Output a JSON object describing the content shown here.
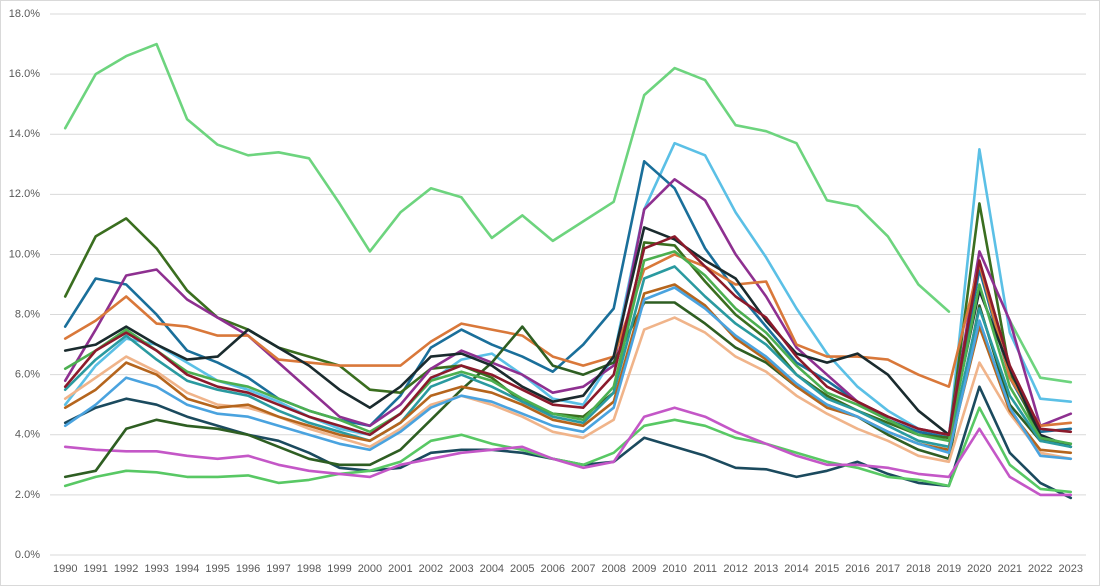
{
  "chart_data": {
    "type": "line",
    "categories": [
      "1990",
      "1991",
      "1992",
      "1993",
      "1994",
      "1995",
      "1996",
      "1997",
      "1998",
      "1999",
      "2000",
      "2001",
      "2002",
      "2003",
      "2004",
      "2005",
      "2006",
      "2007",
      "2008",
      "2009",
      "2010",
      "2011",
      "2012",
      "2013",
      "2014",
      "2015",
      "2016",
      "2017",
      "2018",
      "2019",
      "2020",
      "2021",
      "2022",
      "2023"
    ],
    "ylim": [
      0,
      18
    ],
    "yticks": [
      {
        "value": 0,
        "label": "0.0%"
      },
      {
        "value": 2,
        "label": "2.0%"
      },
      {
        "value": 4,
        "label": "4.0%"
      },
      {
        "value": 6,
        "label": "6.0%"
      },
      {
        "value": 8,
        "label": "8.0%"
      },
      {
        "value": 10,
        "label": "10.0%"
      },
      {
        "value": 12,
        "label": "12.0%"
      },
      {
        "value": 14,
        "label": "14.0%"
      },
      {
        "value": 16,
        "label": "16.0%"
      },
      {
        "value": 18,
        "label": "18.0%"
      }
    ],
    "grid": true,
    "series": [
      {
        "color": "#6dd47e",
        "values": [
          14.2,
          16.0,
          16.6,
          17.0,
          14.5,
          13.65,
          13.3,
          13.4,
          13.2,
          11.7,
          10.1,
          11.4,
          12.2,
          11.9,
          10.55,
          11.3,
          10.45,
          11.1,
          11.75,
          15.3,
          16.2,
          15.8,
          14.3,
          14.1,
          13.7,
          11.8,
          11.6,
          10.6,
          9.0,
          8.1,
          null,
          7.8,
          5.9,
          5.75
        ]
      },
      {
        "color": "#5bc0e6",
        "values": [
          5.0,
          6.3,
          7.2,
          7.0,
          6.4,
          5.8,
          5.5,
          5.1,
          4.6,
          4.2,
          4.0,
          4.7,
          5.8,
          6.5,
          6.7,
          6.0,
          5.2,
          5.0,
          6.6,
          11.5,
          13.7,
          13.3,
          11.4,
          9.9,
          8.2,
          6.7,
          5.6,
          4.8,
          4.2,
          3.9,
          13.5,
          7.4,
          5.2,
          5.1
        ]
      },
      {
        "color": "#1a6f9a",
        "values": [
          7.6,
          9.2,
          9.0,
          8.0,
          6.8,
          6.4,
          5.9,
          5.2,
          4.8,
          4.5,
          4.3,
          5.3,
          6.9,
          7.5,
          7.0,
          6.6,
          6.1,
          7.0,
          8.2,
          13.1,
          12.2,
          10.2,
          8.8,
          7.6,
          6.4,
          5.8,
          5.1,
          4.5,
          4.1,
          3.9,
          9.5,
          5.9,
          4.1,
          4.2
        ]
      },
      {
        "color": "#3a6e1f",
        "values": [
          8.6,
          10.6,
          11.2,
          10.2,
          8.8,
          7.9,
          7.5,
          6.9,
          6.6,
          6.3,
          5.5,
          5.4,
          6.2,
          6.3,
          5.9,
          5.1,
          4.7,
          4.6,
          5.4,
          10.4,
          10.3,
          9.1,
          8.0,
          7.2,
          6.0,
          5.3,
          4.8,
          4.4,
          4.0,
          3.9,
          11.7,
          6.1,
          3.9,
          3.6
        ]
      },
      {
        "color": "#8e3090",
        "values": [
          5.8,
          7.5,
          9.3,
          9.5,
          8.5,
          7.9,
          7.3,
          6.4,
          5.5,
          4.6,
          4.3,
          5.0,
          6.2,
          6.8,
          6.4,
          6.0,
          5.4,
          5.6,
          6.3,
          11.5,
          12.5,
          11.8,
          10.0,
          8.6,
          6.9,
          6.0,
          5.1,
          4.6,
          4.2,
          4.0,
          10.1,
          7.8,
          4.3,
          4.7
        ]
      },
      {
        "color": "#d9783a",
        "values": [
          7.2,
          7.8,
          8.6,
          7.7,
          7.6,
          7.3,
          7.3,
          6.5,
          6.4,
          6.3,
          6.3,
          6.3,
          7.1,
          7.7,
          7.5,
          7.3,
          6.6,
          6.3,
          6.6,
          9.5,
          10.0,
          9.6,
          9.0,
          9.1,
          7.0,
          6.6,
          6.6,
          6.5,
          6.0,
          5.6,
          9.7,
          5.9,
          4.3,
          4.4
        ]
      },
      {
        "color": "#1b4a5e",
        "values": [
          4.4,
          4.9,
          5.2,
          5.0,
          4.6,
          4.3,
          4.0,
          3.8,
          3.4,
          2.9,
          2.8,
          2.9,
          3.4,
          3.5,
          3.5,
          3.4,
          3.2,
          3.0,
          3.1,
          3.9,
          3.6,
          3.3,
          2.9,
          2.85,
          2.6,
          2.8,
          3.1,
          2.7,
          2.4,
          2.3,
          5.6,
          3.4,
          2.4,
          1.9
        ]
      },
      {
        "color": "#58c864",
        "values": [
          2.3,
          2.6,
          2.8,
          2.75,
          2.6,
          2.6,
          2.65,
          2.4,
          2.5,
          2.7,
          2.8,
          3.1,
          3.8,
          4.0,
          3.7,
          3.5,
          3.2,
          3.0,
          3.4,
          4.3,
          4.5,
          4.3,
          3.9,
          3.7,
          3.4,
          3.1,
          2.9,
          2.6,
          2.5,
          2.3,
          4.9,
          3.0,
          2.2,
          2.1
        ]
      },
      {
        "color": "#c457c7",
        "values": [
          3.6,
          3.5,
          3.45,
          3.45,
          3.3,
          3.2,
          3.3,
          3.0,
          2.8,
          2.7,
          2.6,
          3.0,
          3.2,
          3.4,
          3.5,
          3.6,
          3.2,
          2.9,
          3.1,
          4.6,
          4.9,
          4.6,
          4.1,
          3.7,
          3.3,
          3.0,
          3.0,
          2.9,
          2.7,
          2.6,
          4.2,
          2.6,
          2.0,
          2.0
        ]
      },
      {
        "color": "#2e5e22",
        "values": [
          2.6,
          2.8,
          4.2,
          4.5,
          4.3,
          4.2,
          4.0,
          3.6,
          3.2,
          3.0,
          3.0,
          3.5,
          4.5,
          5.5,
          6.4,
          7.6,
          6.3,
          6.0,
          6.4,
          8.4,
          8.4,
          7.7,
          6.9,
          6.4,
          5.6,
          5.0,
          4.6,
          4.0,
          3.5,
          3.2,
          8.3,
          5.0,
          3.8,
          3.7
        ]
      },
      {
        "color": "#1a2b2e",
        "values": [
          6.8,
          7.0,
          7.6,
          7.0,
          6.5,
          6.6,
          7.5,
          6.9,
          6.3,
          5.5,
          4.9,
          5.6,
          6.6,
          6.7,
          6.3,
          5.6,
          5.1,
          5.3,
          6.6,
          10.9,
          10.5,
          9.8,
          9.2,
          7.8,
          6.7,
          6.4,
          6.7,
          6.0,
          4.8,
          4.0,
          8.8,
          6.2,
          4.0,
          3.6
        ]
      },
      {
        "color": "#f0b48a",
        "values": [
          5.2,
          5.9,
          6.6,
          6.1,
          5.4,
          5.0,
          4.9,
          4.6,
          4.2,
          3.9,
          3.6,
          4.2,
          5.0,
          5.3,
          5.0,
          4.6,
          4.1,
          3.9,
          4.5,
          7.5,
          7.9,
          7.4,
          6.6,
          6.1,
          5.3,
          4.7,
          4.2,
          3.8,
          3.3,
          3.1,
          6.4,
          4.7,
          3.4,
          3.2
        ]
      },
      {
        "color": "#2a9aa0",
        "values": [
          5.5,
          6.5,
          7.3,
          6.5,
          5.8,
          5.5,
          5.3,
          4.8,
          4.4,
          4.1,
          3.8,
          4.4,
          5.6,
          6.0,
          5.6,
          5.1,
          4.6,
          4.4,
          5.4,
          9.2,
          9.6,
          8.6,
          7.7,
          7.0,
          6.0,
          5.2,
          4.8,
          4.3,
          3.8,
          3.6,
          8.2,
          5.3,
          3.8,
          3.6
        ]
      },
      {
        "color": "#b5651d",
        "values": [
          4.9,
          5.5,
          6.4,
          6.0,
          5.2,
          4.9,
          5.0,
          4.6,
          4.3,
          4.0,
          3.8,
          4.4,
          5.3,
          5.6,
          5.4,
          5.0,
          4.5,
          4.3,
          5.1,
          8.7,
          9.0,
          8.3,
          7.2,
          6.5,
          5.6,
          4.9,
          4.6,
          4.1,
          3.7,
          3.5,
          7.6,
          4.8,
          3.5,
          3.4
        ]
      },
      {
        "color": "#4caf50",
        "values": [
          6.2,
          6.8,
          7.5,
          6.8,
          6.1,
          5.8,
          5.6,
          5.2,
          4.8,
          4.5,
          4.1,
          4.7,
          5.8,
          6.1,
          5.8,
          5.2,
          4.7,
          4.5,
          5.6,
          9.8,
          10.1,
          9.3,
          8.2,
          7.4,
          6.3,
          5.4,
          5.0,
          4.5,
          4.0,
          3.8,
          9.0,
          5.6,
          3.9,
          3.7
        ]
      },
      {
        "color": "#4aa3df",
        "values": [
          4.3,
          5.0,
          5.9,
          5.6,
          5.0,
          4.7,
          4.6,
          4.3,
          4.0,
          3.7,
          3.5,
          4.1,
          4.9,
          5.3,
          5.1,
          4.7,
          4.3,
          4.1,
          4.9,
          8.5,
          8.9,
          8.2,
          7.3,
          6.6,
          5.7,
          5.0,
          4.6,
          4.1,
          3.7,
          3.4,
          7.8,
          4.9,
          3.3,
          3.2
        ]
      },
      {
        "color": "#8b1a2b",
        "values": [
          5.6,
          6.8,
          7.4,
          6.8,
          6.0,
          5.6,
          5.4,
          5.0,
          4.6,
          4.3,
          4.0,
          4.7,
          5.9,
          6.3,
          6.0,
          5.5,
          5.0,
          4.9,
          6.0,
          10.2,
          10.6,
          9.6,
          8.6,
          7.9,
          6.6,
          5.6,
          5.1,
          4.6,
          4.2,
          4.0,
          9.8,
          6.3,
          4.2,
          4.1
        ]
      }
    ]
  }
}
